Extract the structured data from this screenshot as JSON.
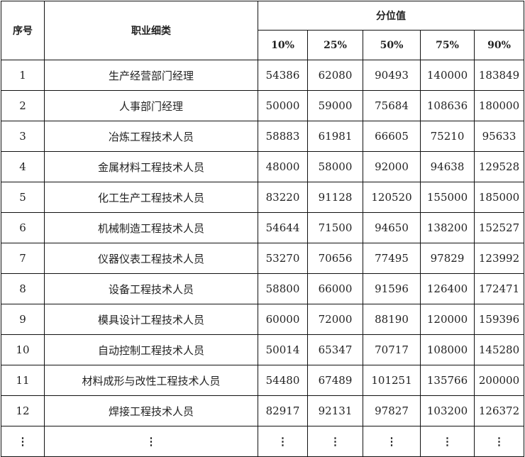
{
  "headers": {
    "index": "序号",
    "occupation": "职业细类",
    "percentile_group": "分位值",
    "percentiles": [
      "10%",
      "25%",
      "50%",
      "75%",
      "90%"
    ]
  },
  "rows": [
    {
      "index": "1",
      "occupation": "生产经营部门经理",
      "values": [
        "54386",
        "62080",
        "90493",
        "140000",
        "183849"
      ]
    },
    {
      "index": "2",
      "occupation": "人事部门经理",
      "values": [
        "50000",
        "59000",
        "75684",
        "108636",
        "180000"
      ]
    },
    {
      "index": "3",
      "occupation": "冶炼工程技术人员",
      "values": [
        "58883",
        "61981",
        "66605",
        "75210",
        "95633"
      ]
    },
    {
      "index": "4",
      "occupation": "金属材料工程技术人员",
      "values": [
        "48000",
        "58000",
        "92000",
        "94638",
        "129528"
      ]
    },
    {
      "index": "5",
      "occupation": "化工生产工程技术人员",
      "values": [
        "83220",
        "91128",
        "120520",
        "155000",
        "185000"
      ]
    },
    {
      "index": "6",
      "occupation": "机械制造工程技术人员",
      "values": [
        "54644",
        "71500",
        "94650",
        "138200",
        "152527"
      ]
    },
    {
      "index": "7",
      "occupation": "仪器仪表工程技术人员",
      "values": [
        "53270",
        "70656",
        "77495",
        "97829",
        "123992"
      ]
    },
    {
      "index": "8",
      "occupation": "设备工程技术人员",
      "values": [
        "58800",
        "66000",
        "91596",
        "126400",
        "172471"
      ]
    },
    {
      "index": "9",
      "occupation": "模具设计工程技术人员",
      "values": [
        "60000",
        "72000",
        "88190",
        "120000",
        "159396"
      ]
    },
    {
      "index": "10",
      "occupation": "自动控制工程技术人员",
      "values": [
        "50014",
        "65347",
        "70717",
        "108000",
        "145280"
      ]
    },
    {
      "index": "11",
      "occupation": "材料成形与改性工程技术人员",
      "values": [
        "54480",
        "67489",
        "101251",
        "135766",
        "200000"
      ]
    },
    {
      "index": "12",
      "occupation": "焊接工程技术人员",
      "values": [
        "82917",
        "92131",
        "97827",
        "103200",
        "126372"
      ]
    }
  ],
  "ellipsis": "⋮"
}
